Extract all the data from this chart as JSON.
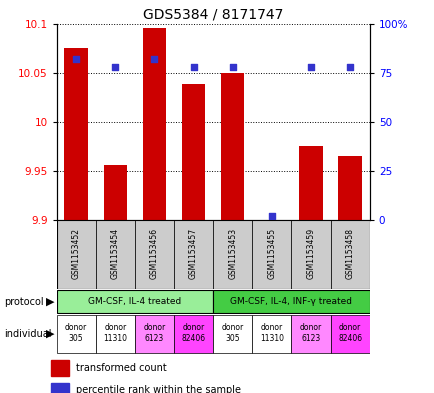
{
  "title": "GDS5384 / 8171747",
  "samples": [
    "GSM1153452",
    "GSM1153454",
    "GSM1153456",
    "GSM1153457",
    "GSM1153453",
    "GSM1153455",
    "GSM1153459",
    "GSM1153458"
  ],
  "transformed_count": [
    10.075,
    9.956,
    10.095,
    10.038,
    10.05,
    9.9,
    9.975,
    9.965
  ],
  "percentile_rank": [
    82,
    78,
    82,
    78,
    78,
    2,
    78,
    78
  ],
  "ylim_left": [
    9.9,
    10.1
  ],
  "ylim_right": [
    0,
    100
  ],
  "yticks_left": [
    9.9,
    9.95,
    10.0,
    10.05,
    10.1
  ],
  "ytick_labels_left": [
    "9.9",
    "9.95",
    "10",
    "10.05",
    "10.1"
  ],
  "yticks_right": [
    0,
    25,
    50,
    75,
    100
  ],
  "ytick_labels_right": [
    "0",
    "25",
    "50",
    "75",
    "100%"
  ],
  "bar_color": "#cc0000",
  "dot_color": "#3333cc",
  "bar_bottom": 9.9,
  "protocols": [
    {
      "label": "GM-CSF, IL-4 treated",
      "start": 0,
      "end": 4,
      "color": "#99ee99"
    },
    {
      "label": "GM-CSF, IL-4, INF-γ treated",
      "start": 4,
      "end": 8,
      "color": "#44cc44"
    }
  ],
  "individuals": [
    {
      "label": "donor\n305",
      "idx": 0,
      "color": "#ffffff"
    },
    {
      "label": "donor\n11310",
      "idx": 1,
      "color": "#ffffff"
    },
    {
      "label": "donor\n6123",
      "idx": 2,
      "color": "#ff88ff"
    },
    {
      "label": "donor\n82406",
      "idx": 3,
      "color": "#ff44ff"
    },
    {
      "label": "donor\n305",
      "idx": 4,
      "color": "#ffffff"
    },
    {
      "label": "donor\n11310",
      "idx": 5,
      "color": "#ffffff"
    },
    {
      "label": "donor\n6123",
      "idx": 6,
      "color": "#ff88ff"
    },
    {
      "label": "donor\n82406",
      "idx": 7,
      "color": "#ff44ff"
    }
  ],
  "legend_bar_label": "transformed count",
  "legend_dot_label": "percentile rank within the sample",
  "background_color": "#ffffff",
  "sample_bg_color": "#cccccc",
  "grid_color": "#000000",
  "spine_color": "#000000"
}
